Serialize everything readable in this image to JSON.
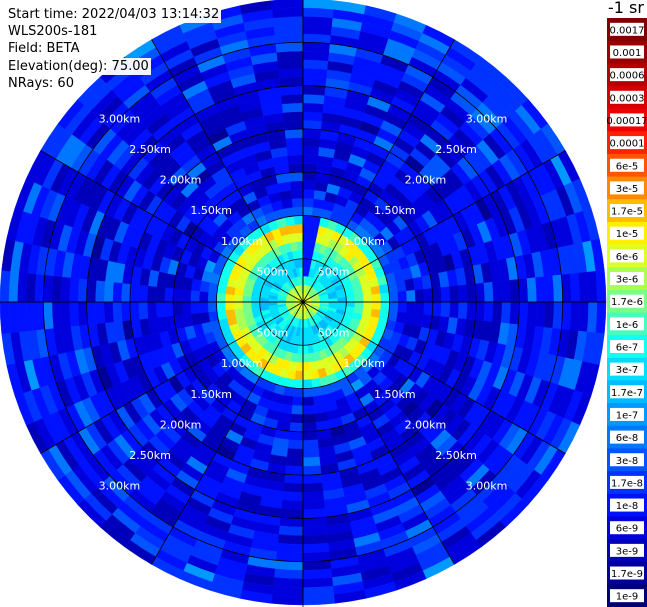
{
  "header": {
    "start_time": "Start time: 2022/04/03 13:14:32",
    "instrument": "WLS200s-181",
    "field": "Field: BETA",
    "elevation": "Elevation(deg): 75.00",
    "nrays": "NRays: 60"
  },
  "colorbar": {
    "unit_label": "-1 sr",
    "labels": [
      "0.0017",
      "0.001",
      "0.0006",
      "0.0003",
      "0.00017",
      "0.0001",
      "6e-5",
      "3e-5",
      "1.7e-5",
      "1e-5",
      "6e-6",
      "3e-6",
      "1.7e-6",
      "1e-6",
      "6e-7",
      "3e-7",
      "1.7e-7",
      "1e-7",
      "6e-8",
      "3e-8",
      "1.7e-8",
      "1e-8",
      "6e-9",
      "3e-9",
      "1.7e-9",
      "1e-9"
    ],
    "colors": [
      "#800000",
      "#9a0000",
      "#b40000",
      "#d20000",
      "#ee0000",
      "#ff2200",
      "#ff5500",
      "#ff8800",
      "#ffbb00",
      "#ffee00",
      "#ddff22",
      "#aaff55",
      "#77ff88",
      "#44ffbb",
      "#11ffee",
      "#00ddff",
      "#00bbff",
      "#0099ff",
      "#0077ff",
      "#0055ff",
      "#0033ff",
      "#0011ff",
      "#0000dd",
      "#0000bb",
      "#000099",
      "#000077"
    ]
  },
  "chart_data": {
    "type": "heatmap",
    "projection": "polar",
    "n_rays": 60,
    "max_range_km": 3.5,
    "range_gate_km": 0.1,
    "range_rings_km": [
      0.5,
      1.0,
      1.5,
      2.0,
      2.5,
      3.0
    ],
    "ring_labels": [
      "500m",
      "1.00km",
      "1.50km",
      "2.00km",
      "2.50km",
      "3.00km"
    ],
    "radial_lines_deg": [
      0,
      30,
      60,
      90,
      120,
      150,
      180,
      210,
      240,
      270,
      300,
      330
    ],
    "colormap_levels": 26,
    "profile_km": [
      0.0,
      0.1,
      0.2,
      0.3,
      0.5,
      0.7,
      0.8,
      0.9,
      1.0,
      1.2,
      2.5,
      3.5
    ],
    "profile_level_index": [
      11,
      9,
      13,
      15,
      15,
      12,
      8,
      10,
      18,
      22,
      22,
      21
    ]
  }
}
